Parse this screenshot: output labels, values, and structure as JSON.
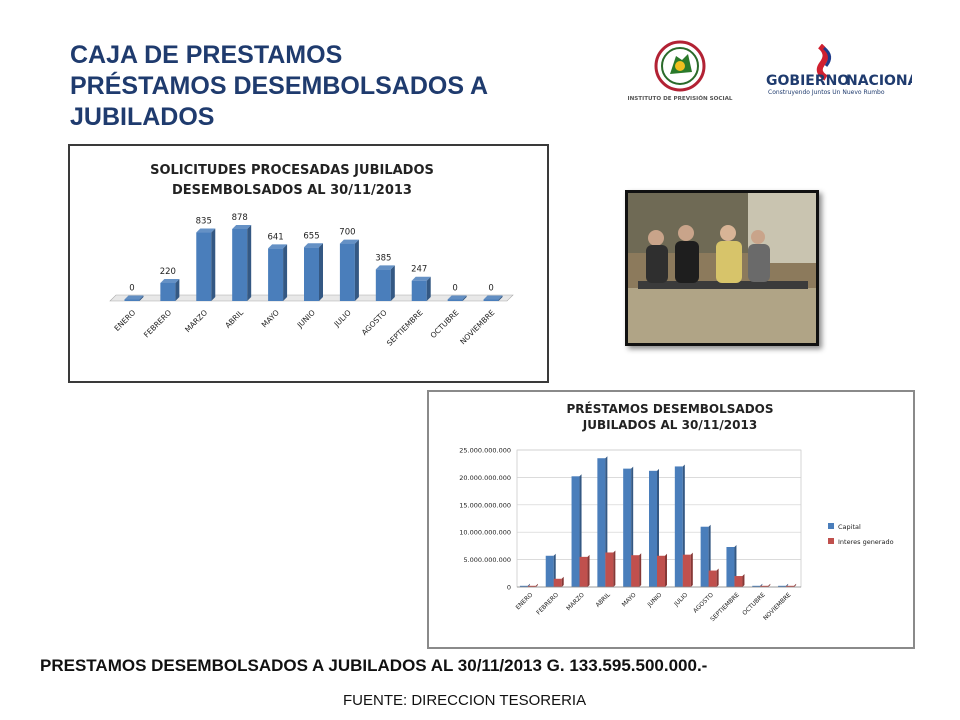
{
  "page": {
    "title_lines": [
      "CAJA DE PRESTAMOS",
      "PRÉSTAMOS DESEMBOLSADOS A",
      "JUBILADOS"
    ],
    "footer": "PRESTAMOS DESEMBOLSADOS A JUBILADOS AL 30/11/2013 G. 133.595.500.000.-",
    "source": "FUENTE: DIRECCION TESORERIA",
    "logos": {
      "ips_text": "INSTITUTO DE PREVISIÓN SOCIAL",
      "gob_name_1": "GOBIERNO",
      "gob_name_2": "NACIONAL",
      "gob_tagline": "Construyendo Juntos Un Nuevo Rumbo"
    },
    "colors": {
      "title": "#1f3b6e",
      "bar_blue": "#4a7ebb",
      "bar_red": "#c0504d"
    }
  },
  "chart_data": [
    {
      "type": "bar",
      "title_lines": [
        "SOLICITUDES PROCESADAS JUBILADOS",
        "DESEMBOLSADOS AL 30/11/2013"
      ],
      "categories": [
        "ENERO",
        "FEBRERO",
        "MARZO",
        "ABRIL",
        "MAYO",
        "JUNIO",
        "JULIO",
        "AGOSTO",
        "SEPTIEMBRE",
        "OCTUBRE",
        "NOVIEMBRE"
      ],
      "values": [
        0,
        220,
        835,
        878,
        641,
        655,
        700,
        385,
        247,
        0,
        0
      ],
      "data_labels": [
        "0",
        "220",
        "835",
        "878",
        "641",
        "655",
        "700",
        "385",
        "247",
        "0",
        "0"
      ],
      "color": "#4a7ebb"
    },
    {
      "type": "bar",
      "title_lines": [
        "PRÉSTAMOS DESEMBOLSADOS",
        "JUBILADOS AL 30/11/2013"
      ],
      "categories": [
        "ENERO",
        "FEBRERO",
        "MARZO",
        "ABRIL",
        "MAYO",
        "JUNIO",
        "JULIO",
        "AGOSTO",
        "SEPTIEMBRE",
        "OCTUBRE",
        "NOVIEMBRE"
      ],
      "ylim": [
        0,
        25000000000
      ],
      "yticks": [
        0,
        5000000000,
        10000000000,
        15000000000,
        20000000000,
        25000000000
      ],
      "ytick_labels": [
        "0",
        "5.000.000.000",
        "10.000.000.000",
        "15.000.000.000",
        "20.000.000.000",
        "25.000.000.000"
      ],
      "series": [
        {
          "name": "Capital",
          "color": "#4a7ebb",
          "values": [
            0,
            5700000000,
            20200000000,
            23500000000,
            21600000000,
            21200000000,
            22000000000,
            11000000000,
            7300000000,
            0,
            0
          ]
        },
        {
          "name": "Interes generado",
          "color": "#c0504d",
          "values": [
            0,
            1500000000,
            5500000000,
            6300000000,
            5800000000,
            5700000000,
            5900000000,
            3000000000,
            2000000000,
            0,
            0
          ]
        }
      ],
      "legend": "right",
      "grid": true
    }
  ]
}
